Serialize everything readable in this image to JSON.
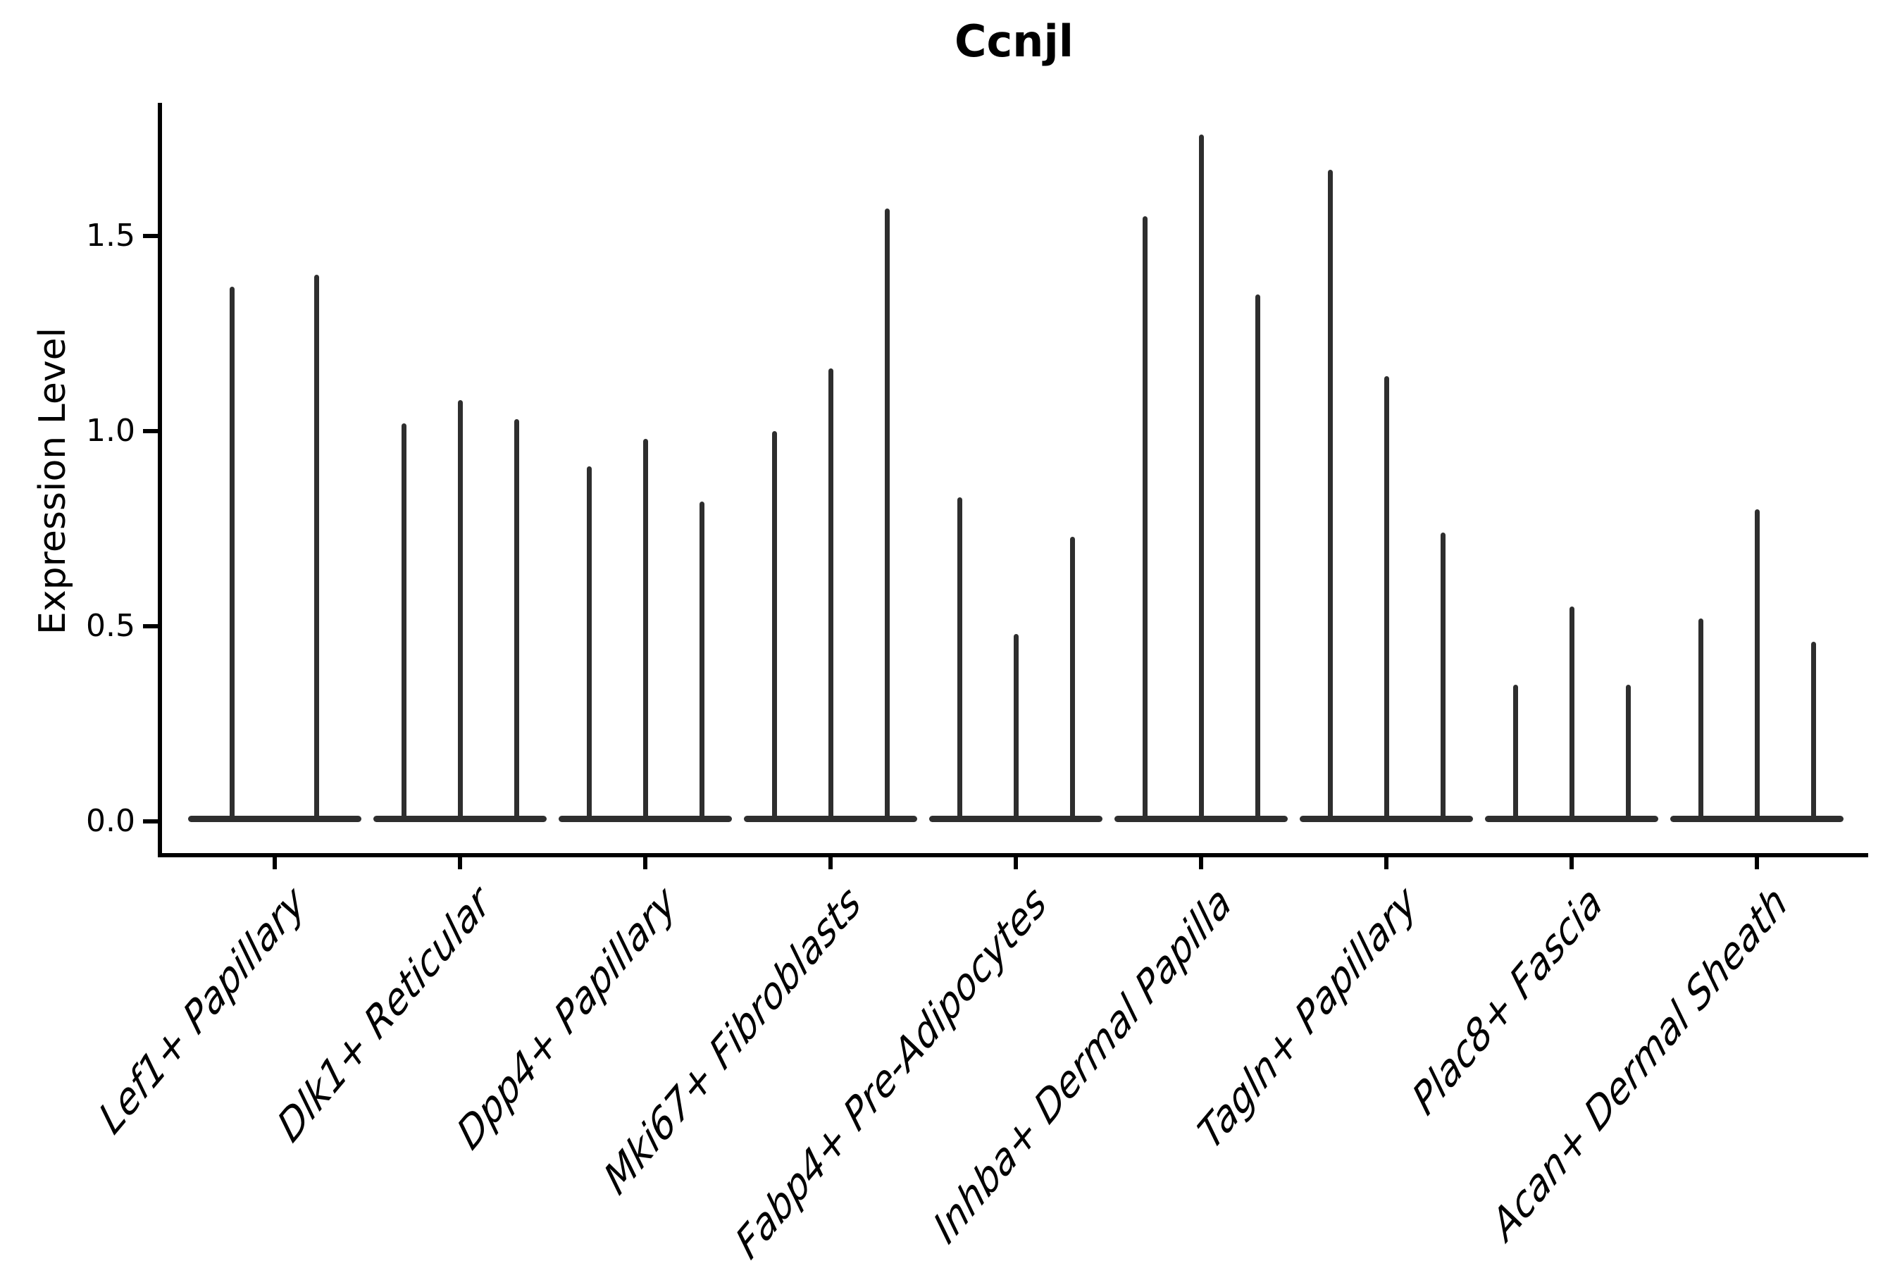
{
  "figure": {
    "title": "Ccnjl",
    "ylabel": "Expression Level"
  },
  "chart_data": {
    "type": "violin",
    "title": "Ccnjl",
    "xlabel": "",
    "ylabel": "Expression Level",
    "ytick_labels": [
      "0.0",
      "0.5",
      "1.0",
      "1.5"
    ],
    "ytick_values": [
      0.0,
      0.5,
      1.0,
      1.5
    ],
    "ylim": [
      -0.08,
      1.84
    ],
    "grid": false,
    "legend": "none",
    "style_note": "single-gene violin plot; each violin is a near-degenerate thin spike: dense mass at 0 with a narrow tail up to the max expression value",
    "categories": [
      "Lef1+ Papillary",
      "Dlk1+ Reticular",
      "Dpp4+ Papillary",
      "Mki67+ Fibroblasts",
      "Fabp4+ Pre-Adipocytes",
      "Inhba+ Dermal Papilla",
      "Tagln+ Papillary",
      "Plac8+ Fascia",
      "Acan+ Dermal Sheath"
    ],
    "series": [
      {
        "category": "Lef1+ Papillary",
        "violin_max_values": [
          1.37,
          1.4
        ]
      },
      {
        "category": "Dlk1+ Reticular",
        "violin_max_values": [
          1.02,
          1.08,
          1.03
        ]
      },
      {
        "category": "Dpp4+ Papillary",
        "violin_max_values": [
          0.91,
          0.98,
          0.82
        ]
      },
      {
        "category": "Mki67+ Fibroblasts",
        "violin_max_values": [
          1.0,
          1.16,
          1.57
        ]
      },
      {
        "category": "Fabp4+ Pre-Adipocytes",
        "violin_max_values": [
          0.83,
          0.48,
          0.73
        ]
      },
      {
        "category": "Inhba+ Dermal Papilla",
        "violin_max_values": [
          1.55,
          1.76,
          1.35
        ]
      },
      {
        "category": "Tagln+ Papillary",
        "violin_max_values": [
          1.67,
          1.14,
          0.74
        ]
      },
      {
        "category": "Plac8+ Fascia",
        "violin_max_values": [
          0.35,
          0.55,
          0.35
        ]
      },
      {
        "category": "Acan+ Dermal Sheath",
        "violin_max_values": [
          0.52,
          0.8,
          0.46
        ]
      }
    ],
    "colors": {
      "violin": "#2e2e2e",
      "axis": "#000000",
      "background": "#ffffff"
    }
  }
}
